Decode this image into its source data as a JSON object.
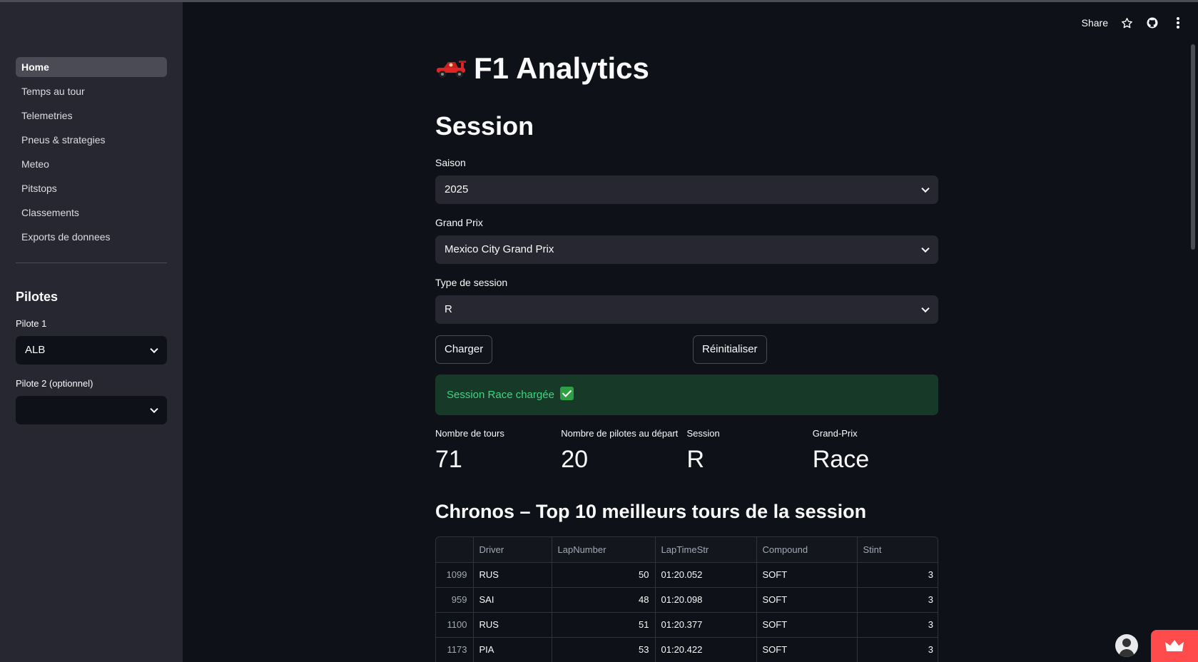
{
  "sidebar": {
    "nav": [
      "Home",
      "Temps au tour",
      "Telemetries",
      "Pneus & strategies",
      "Meteo",
      "Pitstops",
      "Classements",
      "Exports de donnees"
    ],
    "pilotes_heading": "Pilotes",
    "pilote1_label": "Pilote 1",
    "pilote1_value": "ALB",
    "pilote2_label": "Pilote 2 (optionnel)",
    "pilote2_value": ""
  },
  "toolbar": {
    "share_label": "Share",
    "icons": [
      "star-icon",
      "github-icon",
      "more-vertical-icon"
    ]
  },
  "app": {
    "title": "F1 Analytics",
    "title_icon": "race-car-icon"
  },
  "session": {
    "title": "Session",
    "saison_label": "Saison",
    "saison_value": "2025",
    "gp_label": "Grand Prix",
    "gp_value": "Mexico City Grand Prix",
    "type_label": "Type de session",
    "type_value": "R",
    "load_button": "Charger",
    "reset_button": "Réinitialiser",
    "success_message": "Session Race chargée"
  },
  "metrics": [
    {
      "label": "Nombre de tours",
      "value": "71"
    },
    {
      "label": "Nombre de pilotes au départ",
      "value": "20"
    },
    {
      "label": "Session",
      "value": "R"
    },
    {
      "label": "Grand-Prix",
      "value": "Race"
    }
  ],
  "table": {
    "title": "Chronos – Top 10 meilleurs tours de la session",
    "columns": [
      "",
      "Driver",
      "LapNumber",
      "LapTimeStr",
      "Compound",
      "Stint"
    ],
    "rows": [
      [
        "1099",
        "RUS",
        "50",
        "01:20.052",
        "SOFT",
        "3"
      ],
      [
        "959",
        "SAI",
        "48",
        "01:20.098",
        "SOFT",
        "3"
      ],
      [
        "1100",
        "RUS",
        "51",
        "01:20.377",
        "SOFT",
        "3"
      ],
      [
        "1173",
        "PIA",
        "53",
        "01:20.422",
        "SOFT",
        "3"
      ]
    ]
  },
  "colors": {
    "accent": "#ff4b4b",
    "success_bg": "#173928",
    "success_text": "#3fd680"
  }
}
